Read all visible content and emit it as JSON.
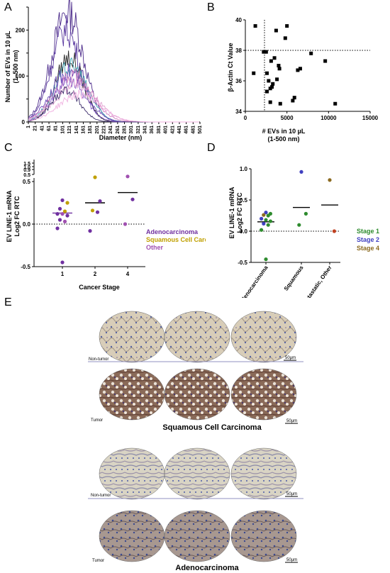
{
  "panels": {
    "a": "A",
    "b": "B",
    "c": "C",
    "d": "D",
    "e": "E"
  },
  "chart_data": [
    {
      "id": "A",
      "type": "line",
      "ylabel_1": "Number of EVs in 10 µL",
      "ylabel_2": "(1–500 nm)",
      "xlabel": "Diameter (nm)",
      "ylim": [
        0,
        250
      ],
      "yticks": [
        "0",
        "100",
        "200"
      ],
      "yticks_minor": [
        "50",
        "150",
        "250"
      ],
      "xticks": [
        "1",
        "21",
        "41",
        "61",
        "81",
        "101",
        "121",
        "141",
        "161",
        "181",
        "201",
        "221",
        "241",
        "261",
        "281",
        "301",
        "321",
        "341",
        "361",
        "381",
        "401",
        "421",
        "441",
        "461",
        "481",
        "501"
      ],
      "series": [
        {
          "color": "#4b2a8a",
          "peak": 240,
          "center": 115,
          "width": 45
        },
        {
          "color": "#5b3aa0",
          "peak": 200,
          "center": 110,
          "width": 42
        },
        {
          "color": "#2b2b2b",
          "peak": 140,
          "center": 120,
          "width": 40
        },
        {
          "color": "#3aa0b0",
          "peak": 120,
          "center": 125,
          "width": 48
        },
        {
          "color": "#6a4ab8",
          "peak": 110,
          "center": 118,
          "width": 50
        },
        {
          "color": "#d080c0",
          "peak": 100,
          "center": 130,
          "width": 55
        },
        {
          "color": "#8a60c8",
          "peak": 90,
          "center": 120,
          "width": 45
        },
        {
          "color": "#e0a0d0",
          "peak": 80,
          "center": 140,
          "width": 60
        },
        {
          "color": "#3b2b6a",
          "peak": 70,
          "center": 110,
          "width": 40
        },
        {
          "color": "#f0b0e0",
          "peak": 60,
          "center": 150,
          "width": 60
        }
      ]
    },
    {
      "id": "B",
      "type": "scatter",
      "xlabel_1": "# EVs in 10 µL",
      "xlabel_2": "(1-500 nm)",
      "ylabel": "β-Actin Ct Value",
      "xlim": [
        0,
        15000
      ],
      "ylim": [
        34,
        40
      ],
      "xticks": [
        "0",
        "5000",
        "10000",
        "15000"
      ],
      "yticks": [
        "34",
        "36",
        "38",
        "40"
      ],
      "vline_x": 2300,
      "hline_y": 38,
      "points": [
        [
          1200,
          39.6
        ],
        [
          1000,
          36.5
        ],
        [
          2200,
          37.9
        ],
        [
          2500,
          37.9
        ],
        [
          2600,
          36.5
        ],
        [
          2600,
          35.3
        ],
        [
          2800,
          36.0
        ],
        [
          3000,
          35.5
        ],
        [
          3000,
          34.6
        ],
        [
          3100,
          37.3
        ],
        [
          3200,
          35.6
        ],
        [
          3300,
          35.8
        ],
        [
          3500,
          37.5
        ],
        [
          3700,
          39.3
        ],
        [
          3800,
          36.1
        ],
        [
          4000,
          37.0
        ],
        [
          4100,
          36.8
        ],
        [
          4200,
          34.5
        ],
        [
          4800,
          38.8
        ],
        [
          5000,
          39.6
        ],
        [
          5700,
          34.7
        ],
        [
          5900,
          34.9
        ],
        [
          6300,
          36.7
        ],
        [
          6600,
          36.8
        ],
        [
          7900,
          37.8
        ],
        [
          9600,
          37.3
        ],
        [
          10800,
          34.5
        ]
      ]
    },
    {
      "id": "C",
      "type": "scatter",
      "ylabel_1": "EV LINE-1 mRNA",
      "ylabel_2": "Log2 FC RTC",
      "xlabel": "Cancer Stage",
      "categories": [
        "1",
        "2",
        "4"
      ],
      "yticks_low": [
        "-0.5",
        "0.0",
        "0.5"
      ],
      "yticks_high": [
        "0.5",
        "0.9",
        "1.0",
        "1.5"
      ],
      "legend": [
        {
          "label": "Adenocarcinoma",
          "color": "#7030a0"
        },
        {
          "label": "Squamous Cell Carcinoma",
          "color": "#c0a000"
        },
        {
          "label": "Other",
          "color": "#a050b0"
        }
      ],
      "means": [
        0.13,
        0.25,
        0.37
      ],
      "points": [
        {
          "cat": 0,
          "y": 0.28,
          "c": "#7030a0"
        },
        {
          "cat": 0,
          "y": 0.25,
          "c": "#c0a000"
        },
        {
          "cat": 0,
          "y": 0.18,
          "c": "#7030a0"
        },
        {
          "cat": 0,
          "y": 0.15,
          "c": "#c0a000"
        },
        {
          "cat": 0,
          "y": 0.12,
          "c": "#7030a0"
        },
        {
          "cat": 0,
          "y": 0.12,
          "c": "#a050b0"
        },
        {
          "cat": 0,
          "y": 0.1,
          "c": "#7030a0"
        },
        {
          "cat": 0,
          "y": 0.05,
          "c": "#7030a0"
        },
        {
          "cat": 0,
          "y": 0.03,
          "c": "#a050b0"
        },
        {
          "cat": 0,
          "y": -0.05,
          "c": "#7030a0"
        },
        {
          "cat": 0,
          "y": -0.45,
          "c": "#7030a0"
        },
        {
          "cat": 1,
          "y": 0.55,
          "c": "#c0a000"
        },
        {
          "cat": 1,
          "y": 0.27,
          "c": "#7030a0"
        },
        {
          "cat": 1,
          "y": 0.16,
          "c": "#c0a000"
        },
        {
          "cat": 1,
          "y": 0.14,
          "c": "#7030a0"
        },
        {
          "cat": 1,
          "y": -0.08,
          "c": "#7030a0"
        },
        {
          "cat": 2,
          "y": 0.56,
          "c": "#a050b0"
        },
        {
          "cat": 2,
          "y": 0.29,
          "c": "#7030a0"
        },
        {
          "cat": 2,
          "y": 0.0,
          "c": "#a050b0"
        }
      ]
    },
    {
      "id": "D",
      "type": "scatter",
      "ylabel_1": "EV LINE-1 mRNA",
      "ylabel_2": "Log2 FC RTC",
      "categories": [
        "Adenocarcinoma",
        "Squamous",
        "Metastatic, Other"
      ],
      "ylim": [
        -0.5,
        1.0
      ],
      "yticks": [
        "-0.5",
        "0.0",
        "0.5",
        "1.0"
      ],
      "legend": [
        {
          "label": "Stage 1",
          "color": "#2e8b2e"
        },
        {
          "label": "Stage 2",
          "color": "#4040c0"
        },
        {
          "label": "Stage 4",
          "color": "#8b6a20"
        }
      ],
      "means": [
        0.15,
        0.38,
        0.42
      ],
      "points": [
        {
          "cat": 0,
          "y": 0.3,
          "c": "#4040c0"
        },
        {
          "cat": 0,
          "y": 0.28,
          "c": "#2e8b2e"
        },
        {
          "cat": 0,
          "y": 0.26,
          "c": "#8b6a20"
        },
        {
          "cat": 0,
          "y": 0.25,
          "c": "#2e8b2e"
        },
        {
          "cat": 0,
          "y": 0.2,
          "c": "#4040c0"
        },
        {
          "cat": 0,
          "y": 0.18,
          "c": "#2e8b2e"
        },
        {
          "cat": 0,
          "y": 0.16,
          "c": "#2e8b2e"
        },
        {
          "cat": 0,
          "y": 0.12,
          "c": "#4040c0"
        },
        {
          "cat": 0,
          "y": 0.1,
          "c": "#2e8b2e"
        },
        {
          "cat": 0,
          "y": 0.02,
          "c": "#2e8b2e"
        },
        {
          "cat": 0,
          "y": -0.45,
          "c": "#2e8b2e"
        },
        {
          "cat": 1,
          "y": 0.95,
          "c": "#4040c0"
        },
        {
          "cat": 1,
          "y": 0.28,
          "c": "#2e8b2e"
        },
        {
          "cat": 1,
          "y": 0.1,
          "c": "#2e8b2e"
        },
        {
          "cat": 2,
          "y": 0.82,
          "c": "#8b6a20"
        },
        {
          "cat": 2,
          "y": 0.0,
          "c": "#c04020"
        }
      ]
    }
  ],
  "panel_e": {
    "scc_title": "Squamous Cell Carcinoma",
    "adeno_title": "Adenocarcinoma",
    "non_tumor": "Non-tumor",
    "tumor": "Tumor",
    "scale": "50µm"
  }
}
